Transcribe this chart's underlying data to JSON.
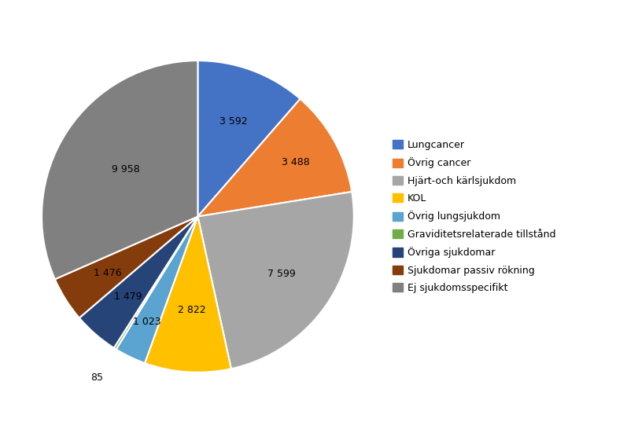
{
  "labels": [
    "Lungcancer",
    "Övrig cancer",
    "Hjärt-och kärlsjukdom",
    "KOL",
    "Övrig lungsjukdom",
    "Graviditetsrelaterade tillstånd",
    "Övriga sjukdomar",
    "Sjukdomar passiv rökning",
    "Ej sjukdomsspecifikt"
  ],
  "values": [
    3592,
    3488,
    7599,
    2822,
    1023,
    85,
    1479,
    1476,
    9958
  ],
  "colors": [
    "#4472C4",
    "#ED7D31",
    "#A6A6A6",
    "#FFC000",
    "#5BA3D0",
    "#70AD47",
    "#264478",
    "#843C0C",
    "#808080"
  ],
  "label_values": [
    "3 592",
    "3 488",
    "7 599",
    "2 822",
    "1 023",
    "85",
    "1 479",
    "1 476",
    "9 958"
  ],
  "label_radii": [
    0.65,
    0.72,
    0.65,
    0.6,
    0.75,
    1.22,
    0.68,
    0.68,
    0.55
  ],
  "startangle": 90,
  "figsize": [
    8.11,
    5.51
  ],
  "dpi": 100
}
